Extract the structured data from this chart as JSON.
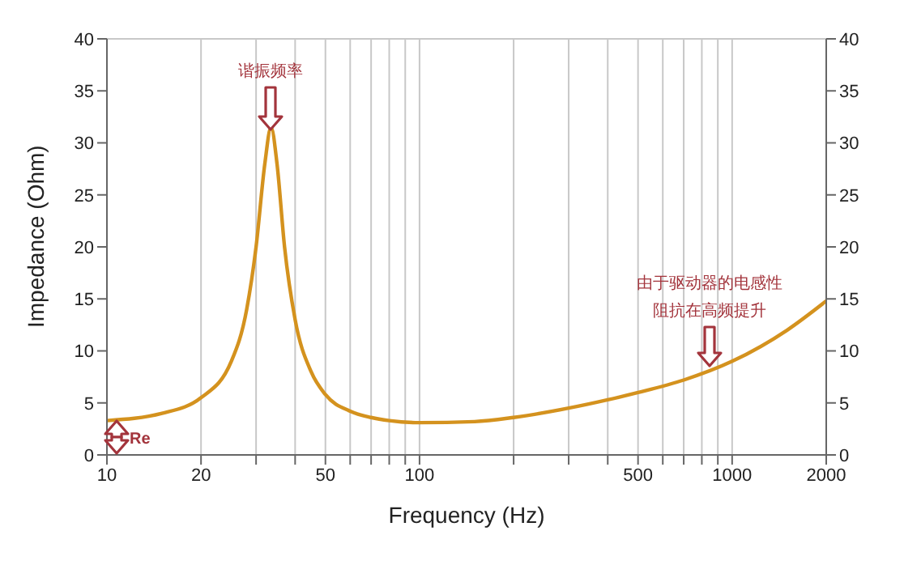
{
  "chart_data": {
    "type": "line",
    "xlabel": "Frequency (Hz)",
    "ylabel": "Impedance (Ohm)",
    "log": "x",
    "x": [
      10,
      15,
      20,
      25,
      28,
      30,
      32,
      33.5,
      35,
      37,
      40,
      45,
      50,
      60,
      70,
      80,
      100,
      150,
      200,
      300,
      400,
      500,
      700,
      1000,
      1500,
      2000
    ],
    "series": [
      {
        "color": "#d4921e",
        "values": [
          3.3,
          4.0,
          5.5,
          9,
          14,
          20,
          28,
          31.5,
          28,
          20,
          13,
          8,
          5.8,
          4.2,
          3.6,
          3.3,
          3.1,
          3.2,
          3.6,
          4.5,
          5.3,
          6.0,
          7.2,
          9,
          12,
          14.8
        ]
      }
    ],
    "xlim": [
      10,
      2000
    ],
    "xticks": [
      10,
      20,
      {
        "value": 30,
        "label": null
      },
      {
        "value": 40,
        "label": null
      },
      50,
      {
        "value": 60,
        "label": null
      },
      {
        "value": 70,
        "label": null
      },
      {
        "value": 80,
        "label": null
      },
      {
        "value": 90,
        "label": null
      },
      100,
      {
        "value": 200,
        "label": null
      },
      {
        "value": 300,
        "label": null
      },
      {
        "value": 400,
        "label": null
      },
      500,
      {
        "value": 600,
        "label": null
      },
      {
        "value": 700,
        "label": null
      },
      {
        "value": 800,
        "label": null
      },
      {
        "value": 900,
        "label": null
      },
      1000,
      2000
    ],
    "ylim": [
      0,
      40
    ],
    "yticks": [
      0,
      5,
      10,
      15,
      20,
      25,
      30,
      35,
      40
    ],
    "y2lim": [
      0,
      40
    ],
    "y2ticks": [
      0,
      5,
      10,
      15,
      20,
      25,
      30,
      35,
      40
    ],
    "grid": true,
    "legend": false,
    "marker": "none",
    "line_style": "solid",
    "annotations": [
      "谐振频率",
      "由于驱动器的电感性阻抗在高频提升",
      "Re"
    ]
  }
}
